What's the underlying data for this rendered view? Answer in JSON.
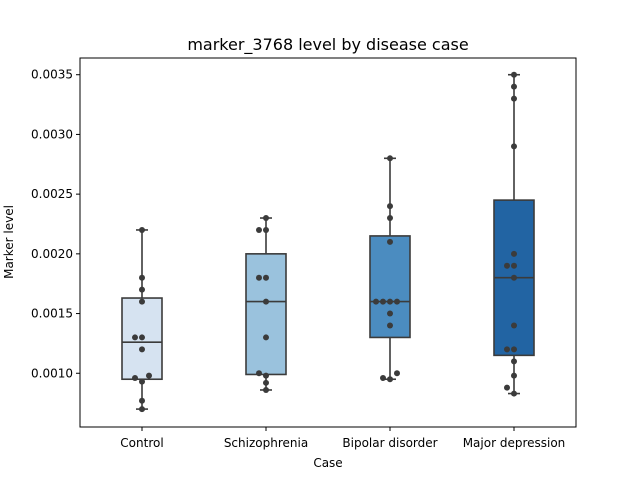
{
  "chart_data": {
    "type": "box",
    "title": "marker_3768 level by disease case",
    "xlabel": "Case",
    "ylabel": "Marker level",
    "ylim": [
      0.00055,
      0.00364
    ],
    "yticks": [
      0.001,
      0.0015,
      0.002,
      0.0025,
      0.003,
      0.0035
    ],
    "ytick_labels": [
      "0.0010",
      "0.0015",
      "0.0020",
      "0.0025",
      "0.0030",
      "0.0035"
    ],
    "grid": false,
    "categories": [
      "Control",
      "Schizophrenia",
      "Bipolar disorder",
      "Major depression"
    ],
    "boxes": [
      {
        "category": "Control",
        "color": "#d6e3f1",
        "min": 0.0007,
        "q1": 0.00095,
        "median": 0.00126,
        "q3": 0.00163,
        "max": 0.0022,
        "points": [
          0.0022,
          0.0018,
          0.0017,
          0.0016,
          0.0013,
          0.0013,
          0.0012,
          0.00098,
          0.00096,
          0.00093,
          0.00077,
          0.0007
        ]
      },
      {
        "category": "Schizophrenia",
        "color": "#9ac2dd",
        "min": 0.00086,
        "q1": 0.00099,
        "median": 0.0016,
        "q3": 0.002,
        "max": 0.0023,
        "points": [
          0.0023,
          0.0022,
          0.0022,
          0.0018,
          0.0018,
          0.0016,
          0.0013,
          0.001,
          0.00098,
          0.00092,
          0.00086
        ]
      },
      {
        "category": "Bipolar disorder",
        "color": "#4b8cc0",
        "min": 0.00095,
        "q1": 0.0013,
        "median": 0.0016,
        "q3": 0.00215,
        "max": 0.0028,
        "points": [
          0.0028,
          0.0024,
          0.0023,
          0.0021,
          0.0016,
          0.0016,
          0.0016,
          0.0016,
          0.0015,
          0.0014,
          0.001,
          0.00096,
          0.00095
        ]
      },
      {
        "category": "Major depression",
        "color": "#2264a3",
        "min": 0.00083,
        "q1": 0.00115,
        "median": 0.0018,
        "q3": 0.00245,
        "max": 0.0035,
        "points": [
          0.0035,
          0.0034,
          0.0033,
          0.0029,
          0.002,
          0.0019,
          0.0019,
          0.0018,
          0.0014,
          0.0012,
          0.0012,
          0.0011,
          0.00098,
          0.00088,
          0.00083
        ]
      }
    ],
    "line_color": "#3b3b3b",
    "point_color": "#3b3b3b"
  }
}
